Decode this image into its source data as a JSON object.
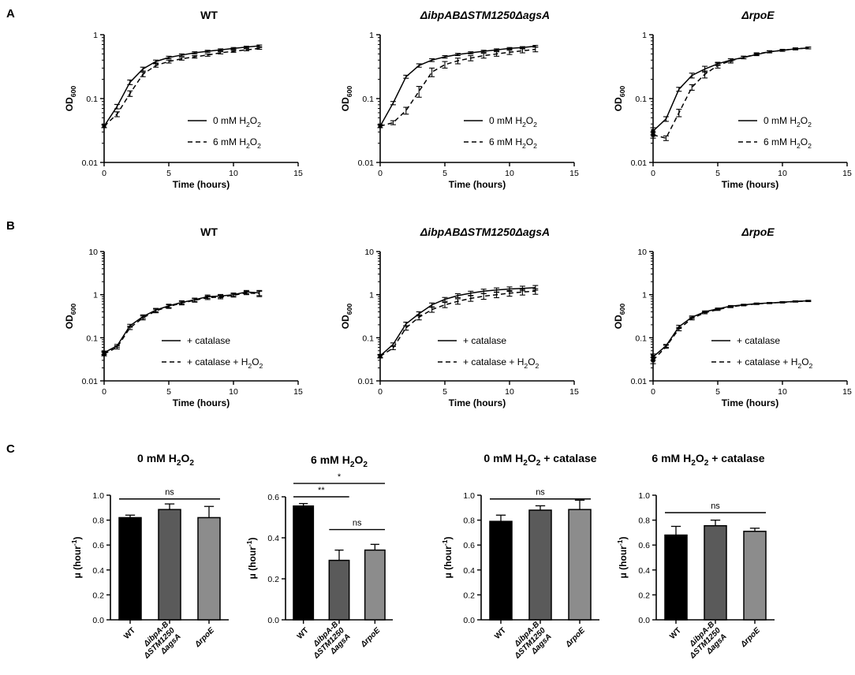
{
  "panel_labels": [
    "A",
    "B",
    "C"
  ],
  "chart_data": [
    {
      "id": "A1",
      "type": "line",
      "title": "WT",
      "title_italic": false,
      "xlabel": "Time (hours)",
      "ylabel": "OD",
      "ylabel_sub": "600",
      "yscale": "log",
      "xlim": [
        0,
        15
      ],
      "ylim": [
        0.01,
        1
      ],
      "xticks": [
        0,
        5,
        10,
        15
      ],
      "yticks": [
        0.01,
        0.1,
        1
      ],
      "ytick_labels": [
        "0.01",
        "0.1",
        "1"
      ],
      "series": [
        {
          "name": "0 mM H2O2",
          "legend": [
            "0 mM H",
            "2",
            "O",
            "2"
          ],
          "dash": "solid",
          "x": [
            0,
            1,
            2,
            3,
            4,
            5,
            6,
            7,
            8,
            9,
            10,
            11,
            12
          ],
          "y": [
            0.037,
            0.075,
            0.18,
            0.29,
            0.38,
            0.44,
            0.48,
            0.52,
            0.55,
            0.58,
            0.61,
            0.64,
            0.67
          ],
          "err": [
            0.002,
            0.006,
            0.015,
            0.02,
            0.02,
            0.02,
            0.02,
            0.02,
            0.02,
            0.02,
            0.02,
            0.02,
            0.02
          ]
        },
        {
          "name": "6 mM H2O2",
          "legend": [
            "6 mM H",
            "2",
            "O",
            "2"
          ],
          "dash": "dashed",
          "x": [
            0,
            1,
            2,
            3,
            4,
            5,
            6,
            7,
            8,
            9,
            10,
            11,
            12
          ],
          "y": [
            0.037,
            0.057,
            0.12,
            0.24,
            0.33,
            0.38,
            0.42,
            0.45,
            0.48,
            0.52,
            0.55,
            0.58,
            0.61
          ],
          "err": [
            0.002,
            0.005,
            0.012,
            0.02,
            0.02,
            0.02,
            0.02,
            0.02,
            0.02,
            0.02,
            0.02,
            0.02,
            0.02
          ]
        }
      ]
    },
    {
      "id": "A2",
      "type": "line",
      "title": "ΔibpABΔSTM1250ΔagsA",
      "title_italic": true,
      "xlabel": "Time (hours)",
      "ylabel": "OD",
      "ylabel_sub": "600",
      "yscale": "log",
      "xlim": [
        0,
        15
      ],
      "ylim": [
        0.01,
        1
      ],
      "xticks": [
        0,
        5,
        10,
        15
      ],
      "yticks": [
        0.01,
        0.1,
        1
      ],
      "ytick_labels": [
        "0.01",
        "0.1",
        "1"
      ],
      "series": [
        {
          "name": "0 mM H2O2",
          "legend": [
            "0 mM H",
            "2",
            "O",
            "2"
          ],
          "dash": "solid",
          "x": [
            0,
            1,
            2,
            3,
            4,
            5,
            6,
            7,
            8,
            9,
            10,
            11,
            12
          ],
          "y": [
            0.037,
            0.085,
            0.22,
            0.33,
            0.4,
            0.45,
            0.49,
            0.52,
            0.55,
            0.58,
            0.61,
            0.63,
            0.66
          ],
          "err": [
            0.002,
            0.005,
            0.012,
            0.02,
            0.02,
            0.02,
            0.02,
            0.02,
            0.02,
            0.02,
            0.02,
            0.02,
            0.02
          ]
        },
        {
          "name": "6 mM H2O2",
          "legend": [
            "6 mM H",
            "2",
            "O",
            "2"
          ],
          "dash": "dashed",
          "x": [
            0,
            1,
            2,
            3,
            4,
            5,
            6,
            7,
            8,
            9,
            10,
            11,
            12
          ],
          "y": [
            0.037,
            0.042,
            0.065,
            0.13,
            0.26,
            0.34,
            0.39,
            0.43,
            0.47,
            0.5,
            0.53,
            0.56,
            0.59
          ],
          "err": [
            0.002,
            0.003,
            0.008,
            0.025,
            0.04,
            0.04,
            0.04,
            0.04,
            0.04,
            0.04,
            0.04,
            0.04,
            0.05
          ]
        }
      ]
    },
    {
      "id": "A3",
      "type": "line",
      "title": "ΔrpoE",
      "title_italic": true,
      "xlabel": "Time (hours)",
      "ylabel": "OD",
      "ylabel_sub": "600",
      "yscale": "log",
      "xlim": [
        0,
        15
      ],
      "ylim": [
        0.01,
        1
      ],
      "xticks": [
        0,
        5,
        10,
        15
      ],
      "yticks": [
        0.01,
        0.1,
        1
      ],
      "ytick_labels": [
        "0.01",
        "0.1",
        "1"
      ],
      "series": [
        {
          "name": "0 mM H2O2",
          "legend": [
            "0 mM H",
            "2",
            "O",
            "2"
          ],
          "dash": "solid",
          "x": [
            0,
            1,
            2,
            3,
            4,
            5,
            6,
            7,
            8,
            9,
            10,
            11,
            12
          ],
          "y": [
            0.031,
            0.048,
            0.14,
            0.23,
            0.29,
            0.35,
            0.4,
            0.44,
            0.49,
            0.54,
            0.57,
            0.6,
            0.62
          ],
          "err": [
            0.004,
            0.004,
            0.01,
            0.02,
            0.03,
            0.02,
            0.02,
            0.02,
            0.02,
            0.02,
            0.02,
            0.02,
            0.02
          ]
        },
        {
          "name": "6 mM H2O2",
          "legend": [
            "6 mM H",
            "2",
            "O",
            "2"
          ],
          "dash": "dashed",
          "x": [
            0,
            1,
            2,
            3,
            4,
            5,
            6,
            7,
            8,
            9,
            10,
            11,
            12
          ],
          "y": [
            0.027,
            0.024,
            0.06,
            0.15,
            0.24,
            0.33,
            0.39,
            0.44,
            0.5,
            0.54,
            0.57,
            0.6,
            0.62
          ],
          "err": [
            0.003,
            0.002,
            0.008,
            0.015,
            0.03,
            0.03,
            0.03,
            0.02,
            0.02,
            0.02,
            0.02,
            0.02,
            0.02
          ]
        }
      ]
    },
    {
      "id": "B1",
      "type": "line",
      "title": "WT",
      "title_italic": false,
      "xlabel": "Time (hours)",
      "ylabel": "OD",
      "ylabel_sub": "600",
      "yscale": "log",
      "xlim": [
        0,
        15
      ],
      "ylim": [
        0.01,
        10
      ],
      "xticks": [
        0,
        5,
        10,
        15
      ],
      "yticks": [
        0.01,
        0.1,
        1,
        10
      ],
      "ytick_labels": [
        "0.01",
        "0.1",
        "1",
        "10"
      ],
      "series": [
        {
          "name": "+ catalase",
          "legend": [
            "+ catalase"
          ],
          "dash": "solid",
          "x": [
            0,
            1,
            2,
            3,
            4,
            5,
            6,
            7,
            8,
            9,
            10,
            11,
            12
          ],
          "y": [
            0.045,
            0.065,
            0.19,
            0.31,
            0.44,
            0.55,
            0.66,
            0.76,
            0.9,
            0.93,
            1.0,
            1.15,
            1.1
          ],
          "err": [
            0.004,
            0.005,
            0.015,
            0.03,
            0.04,
            0.05,
            0.06,
            0.07,
            0.08,
            0.08,
            0.09,
            0.1,
            0.15
          ]
        },
        {
          "name": "+ catalase + H2O2",
          "legend": [
            "+ catalase + H",
            "2",
            "O",
            "2"
          ],
          "dash": "dashed",
          "x": [
            0,
            1,
            2,
            3,
            4,
            5,
            6,
            7,
            8,
            9,
            10,
            11,
            12
          ],
          "y": [
            0.042,
            0.06,
            0.17,
            0.29,
            0.42,
            0.53,
            0.64,
            0.74,
            0.85,
            0.88,
            0.97,
            1.1,
            1.05
          ],
          "err": [
            0.004,
            0.005,
            0.015,
            0.03,
            0.04,
            0.05,
            0.06,
            0.07,
            0.08,
            0.08,
            0.09,
            0.1,
            0.15
          ]
        }
      ]
    },
    {
      "id": "B2",
      "type": "line",
      "title": "ΔibpABΔSTM1250ΔagsA",
      "title_italic": true,
      "xlabel": "Time (hours)",
      "ylabel": "OD",
      "ylabel_sub": "600",
      "yscale": "log",
      "xlim": [
        0,
        15
      ],
      "ylim": [
        0.01,
        10
      ],
      "xticks": [
        0,
        5,
        10,
        15
      ],
      "yticks": [
        0.01,
        0.1,
        1,
        10
      ],
      "ytick_labels": [
        "0.01",
        "0.1",
        "1",
        "10"
      ],
      "series": [
        {
          "name": "+ catalase",
          "legend": [
            "+ catalase"
          ],
          "dash": "solid",
          "x": [
            0,
            1,
            2,
            3,
            4,
            5,
            6,
            7,
            8,
            9,
            10,
            11,
            12
          ],
          "y": [
            0.038,
            0.07,
            0.21,
            0.36,
            0.58,
            0.78,
            0.95,
            1.08,
            1.2,
            1.28,
            1.35,
            1.4,
            1.45
          ],
          "err": [
            0.003,
            0.006,
            0.02,
            0.04,
            0.06,
            0.08,
            0.1,
            0.12,
            0.14,
            0.15,
            0.16,
            0.17,
            0.18
          ]
        },
        {
          "name": "+ catalase + H2O2",
          "legend": [
            "+ catalase + H",
            "2",
            "O",
            "2"
          ],
          "dash": "dashed",
          "x": [
            0,
            1,
            2,
            3,
            4,
            5,
            6,
            7,
            8,
            9,
            10,
            11,
            12
          ],
          "y": [
            0.037,
            0.058,
            0.17,
            0.3,
            0.45,
            0.58,
            0.7,
            0.82,
            0.92,
            1.0,
            1.08,
            1.15,
            1.2
          ],
          "err": [
            0.003,
            0.005,
            0.02,
            0.04,
            0.06,
            0.08,
            0.1,
            0.12,
            0.14,
            0.15,
            0.16,
            0.17,
            0.18
          ]
        }
      ]
    },
    {
      "id": "B3",
      "type": "line",
      "title": "ΔrpoE",
      "title_italic": true,
      "xlabel": "Time (hours)",
      "ylabel": "OD",
      "ylabel_sub": "600",
      "yscale": "log",
      "xlim": [
        0,
        15
      ],
      "ylim": [
        0.01,
        10
      ],
      "xticks": [
        0,
        5,
        10,
        15
      ],
      "yticks": [
        0.01,
        0.1,
        1,
        10
      ],
      "ytick_labels": [
        "0.01",
        "0.1",
        "1",
        "10"
      ],
      "series": [
        {
          "name": "+ catalase",
          "legend": [
            "+ catalase"
          ],
          "dash": "solid",
          "x": [
            0,
            1,
            2,
            3,
            4,
            5,
            6,
            7,
            8,
            9,
            10,
            11,
            12
          ],
          "y": [
            0.036,
            0.065,
            0.18,
            0.3,
            0.4,
            0.47,
            0.54,
            0.58,
            0.62,
            0.64,
            0.67,
            0.7,
            0.72
          ],
          "err": [
            0.006,
            0.005,
            0.015,
            0.02,
            0.02,
            0.02,
            0.02,
            0.02,
            0.02,
            0.02,
            0.02,
            0.02,
            0.02
          ]
        },
        {
          "name": "+ catalase + H2O2",
          "legend": [
            "+ catalase + H",
            "2",
            "O",
            "2"
          ],
          "dash": "dashed",
          "x": [
            0,
            1,
            2,
            3,
            4,
            5,
            6,
            7,
            8,
            9,
            10,
            11,
            12
          ],
          "y": [
            0.03,
            0.062,
            0.16,
            0.28,
            0.38,
            0.45,
            0.52,
            0.57,
            0.61,
            0.64,
            0.66,
            0.69,
            0.71
          ],
          "err": [
            0.005,
            0.005,
            0.015,
            0.02,
            0.02,
            0.02,
            0.02,
            0.02,
            0.02,
            0.02,
            0.02,
            0.02,
            0.02
          ]
        }
      ]
    },
    {
      "id": "C1",
      "type": "bar",
      "title": [
        "0 mM H",
        "2",
        "O",
        "2"
      ],
      "ylabel": "μ (hour",
      "ylabel_sup": "-1",
      "ylabel_close": ")",
      "ylim": [
        0,
        1.0
      ],
      "yticks": [
        0,
        0.2,
        0.4,
        0.6,
        0.8,
        1.0
      ],
      "ytick_labels": [
        "0.0",
        "0.2",
        "0.4",
        "0.6",
        "0.8",
        "1.0"
      ],
      "categories": [
        [
          "WT"
        ],
        [
          "ΔibpA-B",
          "ΔSTM1250",
          "ΔagsA"
        ],
        [
          "ΔrpoE"
        ]
      ],
      "category_italic": [
        false,
        true,
        true
      ],
      "values": [
        0.82,
        0.885,
        0.82
      ],
      "errors": [
        0.02,
        0.045,
        0.09
      ],
      "colors": [
        "#000000",
        "#5a5a5a",
        "#8c8c8c"
      ],
      "significance": [
        {
          "from": 0,
          "to": 2,
          "level": 0.97,
          "label": "ns"
        }
      ]
    },
    {
      "id": "C2",
      "type": "bar",
      "title": [
        "6 mM H",
        "2",
        "O",
        "2"
      ],
      "ylabel": "μ (hour",
      "ylabel_sup": "-1",
      "ylabel_close": ")",
      "ylim": [
        0,
        0.6
      ],
      "yticks": [
        0,
        0.2,
        0.4,
        0.6
      ],
      "ytick_labels": [
        "0.0",
        "0.2",
        "0.4",
        "0.6"
      ],
      "categories": [
        [
          "WT"
        ],
        [
          "ΔibpA-B",
          "ΔSTM1250",
          "ΔagsA"
        ],
        [
          "ΔrpoE"
        ]
      ],
      "category_italic": [
        false,
        true,
        true
      ],
      "values": [
        0.555,
        0.29,
        0.34
      ],
      "errors": [
        0.012,
        0.05,
        0.028
      ],
      "colors": [
        "#000000",
        "#5a5a5a",
        "#8c8c8c"
      ],
      "significance": [
        {
          "from": 0,
          "to": 2,
          "level": 0.665,
          "label": "*"
        },
        {
          "from": 0,
          "to": 1,
          "level": 0.6,
          "label": "**"
        },
        {
          "from": 1,
          "to": 2,
          "level": 0.44,
          "label": "ns"
        }
      ]
    },
    {
      "id": "C3",
      "type": "bar",
      "title": [
        "0 mM H",
        "2",
        "O",
        "2",
        " + catalase"
      ],
      "ylabel": "μ (hour",
      "ylabel_sup": "-1",
      "ylabel_close": ")",
      "ylim": [
        0,
        1.0
      ],
      "yticks": [
        0,
        0.2,
        0.4,
        0.6,
        0.8,
        1.0
      ],
      "ytick_labels": [
        "0.0",
        "0.2",
        "0.4",
        "0.6",
        "0.8",
        "1.0"
      ],
      "categories": [
        [
          "WT"
        ],
        [
          "ΔibpA-B",
          "ΔSTM1250",
          "ΔagsA"
        ],
        [
          "ΔrpoE"
        ]
      ],
      "category_italic": [
        false,
        true,
        true
      ],
      "values": [
        0.79,
        0.88,
        0.885
      ],
      "errors": [
        0.05,
        0.035,
        0.075
      ],
      "colors": [
        "#000000",
        "#5a5a5a",
        "#8c8c8c"
      ],
      "significance": [
        {
          "from": 0,
          "to": 2,
          "level": 0.97,
          "label": "ns"
        }
      ]
    },
    {
      "id": "C4",
      "type": "bar",
      "title": [
        "6 mM H",
        "2",
        "O",
        "2",
        " + catalase"
      ],
      "ylabel": "μ (hour",
      "ylabel_sup": "-1",
      "ylabel_close": ")",
      "ylim": [
        0,
        1.0
      ],
      "yticks": [
        0,
        0.2,
        0.4,
        0.6,
        0.8,
        1.0
      ],
      "ytick_labels": [
        "0.0",
        "0.2",
        "0.4",
        "0.6",
        "0.8",
        "1.0"
      ],
      "categories": [
        [
          "WT"
        ],
        [
          "ΔibpA-B",
          "ΔSTM1250",
          "ΔagsA"
        ],
        [
          "ΔrpoE"
        ]
      ],
      "category_italic": [
        false,
        true,
        true
      ],
      "values": [
        0.68,
        0.755,
        0.71
      ],
      "errors": [
        0.07,
        0.045,
        0.025
      ],
      "colors": [
        "#000000",
        "#5a5a5a",
        "#8c8c8c"
      ],
      "significance": [
        {
          "from": 0,
          "to": 2,
          "level": 0.86,
          "label": "ns"
        }
      ]
    }
  ]
}
